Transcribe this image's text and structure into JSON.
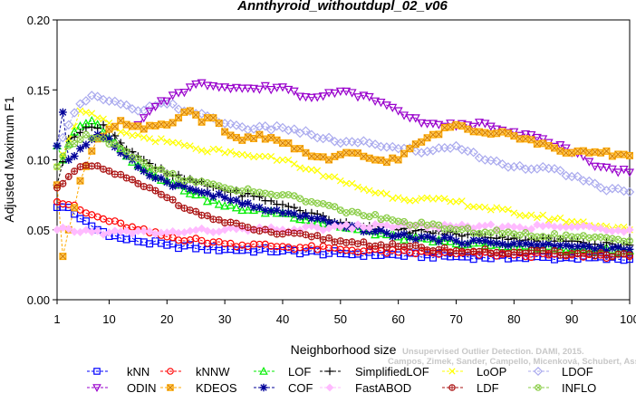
{
  "chart_data": {
    "type": "line",
    "title": "Annthyroid_withoutdupl_02_v06",
    "xlabel": "Neighborhood size",
    "ylabel": "Adjusted Maximum F1",
    "xlim": [
      1,
      100
    ],
    "ylim": [
      0,
      0.2
    ],
    "xticks": [
      "1",
      "10",
      "20",
      "30",
      "40",
      "50",
      "60",
      "70",
      "80",
      "90",
      "100"
    ],
    "yticks": [
      "0.00",
      "0.05",
      "0.10",
      "0.15",
      "0.20"
    ],
    "grid": false,
    "legend_position": "bottom",
    "watermark": [
      "Unsupervised Outlier Detection. DAMI, 2015.",
      "Campos, Zimek, Sander, Campello, Micenková, Schubert, Assent, Houle"
    ],
    "series": [
      {
        "name": "kNN",
        "color": "#0000ff",
        "marker": "square",
        "knots": [
          [
            1,
            0.066
          ],
          [
            3,
            0.066
          ],
          [
            5,
            0.058
          ],
          [
            8,
            0.05
          ],
          [
            12,
            0.044
          ],
          [
            20,
            0.039
          ],
          [
            30,
            0.036
          ],
          [
            40,
            0.035
          ],
          [
            50,
            0.033
          ],
          [
            60,
            0.032
          ],
          [
            70,
            0.031
          ],
          [
            80,
            0.03
          ],
          [
            90,
            0.03
          ],
          [
            100,
            0.029
          ]
        ]
      },
      {
        "name": "kNNW",
        "color": "#ff0000",
        "marker": "circle",
        "knots": [
          [
            1,
            0.07
          ],
          [
            3,
            0.068
          ],
          [
            6,
            0.062
          ],
          [
            10,
            0.056
          ],
          [
            15,
            0.05
          ],
          [
            20,
            0.045
          ],
          [
            30,
            0.04
          ],
          [
            40,
            0.038
          ],
          [
            50,
            0.036
          ],
          [
            60,
            0.034
          ],
          [
            70,
            0.033
          ],
          [
            80,
            0.032
          ],
          [
            90,
            0.032
          ],
          [
            100,
            0.031
          ]
        ]
      },
      {
        "name": "LOF",
        "color": "#00ee00",
        "marker": "triangle",
        "knots": [
          [
            1,
            0.11
          ],
          [
            2,
            0.1
          ],
          [
            4,
            0.12
          ],
          [
            7,
            0.128
          ],
          [
            9,
            0.12
          ],
          [
            12,
            0.108
          ],
          [
            15,
            0.096
          ],
          [
            20,
            0.085
          ],
          [
            25,
            0.075
          ],
          [
            30,
            0.067
          ],
          [
            35,
            0.064
          ],
          [
            40,
            0.062
          ],
          [
            50,
            0.052
          ],
          [
            60,
            0.045
          ],
          [
            70,
            0.04
          ],
          [
            80,
            0.038
          ],
          [
            90,
            0.036
          ],
          [
            100,
            0.035
          ]
        ]
      },
      {
        "name": "SimplifiedLOF",
        "color": "#000000",
        "marker": "plus",
        "knots": [
          [
            1,
            0.082
          ],
          [
            3,
            0.115
          ],
          [
            6,
            0.123
          ],
          [
            9,
            0.125
          ],
          [
            12,
            0.112
          ],
          [
            16,
            0.1
          ],
          [
            20,
            0.09
          ],
          [
            25,
            0.084
          ],
          [
            30,
            0.078
          ],
          [
            35,
            0.074
          ],
          [
            40,
            0.068
          ],
          [
            45,
            0.062
          ],
          [
            50,
            0.055
          ],
          [
            60,
            0.05
          ],
          [
            70,
            0.047
          ],
          [
            80,
            0.044
          ],
          [
            90,
            0.042
          ],
          [
            100,
            0.039
          ]
        ]
      },
      {
        "name": "LoOP",
        "color": "#ffff00",
        "marker": "x",
        "knots": [
          [
            1,
            0.095
          ],
          [
            3,
            0.115
          ],
          [
            5,
            0.135
          ],
          [
            8,
            0.13
          ],
          [
            12,
            0.12
          ],
          [
            16,
            0.116
          ],
          [
            20,
            0.113
          ],
          [
            25,
            0.108
          ],
          [
            30,
            0.105
          ],
          [
            35,
            0.102
          ],
          [
            40,
            0.1
          ],
          [
            45,
            0.093
          ],
          [
            50,
            0.085
          ],
          [
            55,
            0.078
          ],
          [
            60,
            0.073
          ],
          [
            70,
            0.07
          ],
          [
            80,
            0.062
          ],
          [
            90,
            0.056
          ],
          [
            100,
            0.05
          ]
        ]
      },
      {
        "name": "LDOF",
        "color": "#aaaaee",
        "marker": "diamond",
        "knots": [
          [
            1,
            0.11
          ],
          [
            3,
            0.125
          ],
          [
            5,
            0.14
          ],
          [
            7,
            0.146
          ],
          [
            10,
            0.142
          ],
          [
            15,
            0.135
          ],
          [
            20,
            0.14
          ],
          [
            25,
            0.133
          ],
          [
            30,
            0.126
          ],
          [
            35,
            0.122
          ],
          [
            40,
            0.123
          ],
          [
            45,
            0.118
          ],
          [
            50,
            0.112
          ],
          [
            55,
            0.112
          ],
          [
            60,
            0.108
          ],
          [
            65,
            0.106
          ],
          [
            70,
            0.11
          ],
          [
            75,
            0.1
          ],
          [
            80,
            0.095
          ],
          [
            85,
            0.095
          ],
          [
            90,
            0.088
          ],
          [
            95,
            0.08
          ],
          [
            100,
            0.077
          ]
        ]
      },
      {
        "name": "ODIN",
        "color": "#9900cc",
        "marker": "triangle-down",
        "knots": [
          [
            15,
            0.125
          ],
          [
            18,
            0.138
          ],
          [
            22,
            0.148
          ],
          [
            26,
            0.155
          ],
          [
            30,
            0.152
          ],
          [
            35,
            0.151
          ],
          [
            40,
            0.152
          ],
          [
            44,
            0.145
          ],
          [
            48,
            0.148
          ],
          [
            52,
            0.148
          ],
          [
            56,
            0.142
          ],
          [
            60,
            0.135
          ],
          [
            62,
            0.13
          ],
          [
            66,
            0.126
          ],
          [
            70,
            0.124
          ],
          [
            75,
            0.126
          ],
          [
            80,
            0.12
          ],
          [
            85,
            0.115
          ],
          [
            90,
            0.105
          ],
          [
            95,
            0.095
          ],
          [
            100,
            0.091
          ]
        ]
      },
      {
        "name": "KDEOS",
        "color": "#ffaa00",
        "marker": "square-x",
        "knots": [
          [
            1,
            0.082
          ],
          [
            2,
            0.031
          ],
          [
            3,
            0.05
          ],
          [
            5,
            0.085
          ],
          [
            8,
            0.115
          ],
          [
            12,
            0.128
          ],
          [
            16,
            0.122
          ],
          [
            20,
            0.125
          ],
          [
            22,
            0.13
          ],
          [
            24,
            0.135
          ],
          [
            26,
            0.127
          ],
          [
            28,
            0.13
          ],
          [
            30,
            0.12
          ],
          [
            33,
            0.114
          ],
          [
            36,
            0.118
          ],
          [
            40,
            0.112
          ],
          [
            44,
            0.105
          ],
          [
            48,
            0.1
          ],
          [
            52,
            0.105
          ],
          [
            56,
            0.1
          ],
          [
            60,
            0.1
          ],
          [
            62,
            0.108
          ],
          [
            66,
            0.118
          ],
          [
            70,
            0.125
          ],
          [
            74,
            0.12
          ],
          [
            78,
            0.12
          ],
          [
            82,
            0.115
          ],
          [
            86,
            0.11
          ],
          [
            90,
            0.105
          ],
          [
            95,
            0.105
          ],
          [
            100,
            0.103
          ]
        ]
      },
      {
        "name": "COF",
        "color": "#000099",
        "marker": "asterisk",
        "knots": [
          [
            1,
            0.11
          ],
          [
            2,
            0.134
          ],
          [
            3,
            0.1
          ],
          [
            5,
            0.108
          ],
          [
            8,
            0.118
          ],
          [
            10,
            0.115
          ],
          [
            12,
            0.105
          ],
          [
            16,
            0.092
          ],
          [
            20,
            0.084
          ],
          [
            25,
            0.078
          ],
          [
            30,
            0.073
          ],
          [
            35,
            0.066
          ],
          [
            40,
            0.062
          ],
          [
            45,
            0.058
          ],
          [
            50,
            0.053
          ],
          [
            60,
            0.046
          ],
          [
            70,
            0.042
          ],
          [
            80,
            0.04
          ],
          [
            90,
            0.038
          ],
          [
            100,
            0.036
          ]
        ]
      },
      {
        "name": "FastABOD",
        "color": "#ffbbff",
        "marker": "diamond-filled",
        "knots": [
          [
            1,
            0.05
          ],
          [
            10,
            0.048
          ],
          [
            20,
            0.048
          ],
          [
            30,
            0.05
          ],
          [
            40,
            0.05
          ],
          [
            50,
            0.052
          ],
          [
            60,
            0.053
          ],
          [
            70,
            0.052
          ],
          [
            80,
            0.052
          ],
          [
            90,
            0.052
          ],
          [
            100,
            0.05
          ]
        ]
      },
      {
        "name": "LDF",
        "color": "#aa1111",
        "marker": "circle-plus",
        "knots": [
          [
            1,
            0.08
          ],
          [
            3,
            0.088
          ],
          [
            6,
            0.096
          ],
          [
            10,
            0.092
          ],
          [
            15,
            0.083
          ],
          [
            20,
            0.073
          ],
          [
            25,
            0.063
          ],
          [
            30,
            0.055
          ],
          [
            35,
            0.05
          ],
          [
            40,
            0.047
          ],
          [
            45,
            0.045
          ],
          [
            50,
            0.042
          ],
          [
            60,
            0.038
          ],
          [
            70,
            0.035
          ],
          [
            80,
            0.034
          ],
          [
            90,
            0.033
          ],
          [
            100,
            0.032
          ]
        ]
      },
      {
        "name": "INFLO",
        "color": "#88cc44",
        "marker": "circle-x",
        "knots": [
          [
            1,
            0.095
          ],
          [
            3,
            0.11
          ],
          [
            6,
            0.118
          ],
          [
            9,
            0.115
          ],
          [
            12,
            0.108
          ],
          [
            16,
            0.098
          ],
          [
            20,
            0.09
          ],
          [
            25,
            0.084
          ],
          [
            30,
            0.08
          ],
          [
            35,
            0.077
          ],
          [
            40,
            0.075
          ],
          [
            45,
            0.07
          ],
          [
            50,
            0.064
          ],
          [
            60,
            0.056
          ],
          [
            70,
            0.05
          ],
          [
            80,
            0.047
          ],
          [
            90,
            0.045
          ],
          [
            100,
            0.042
          ]
        ]
      }
    ]
  }
}
